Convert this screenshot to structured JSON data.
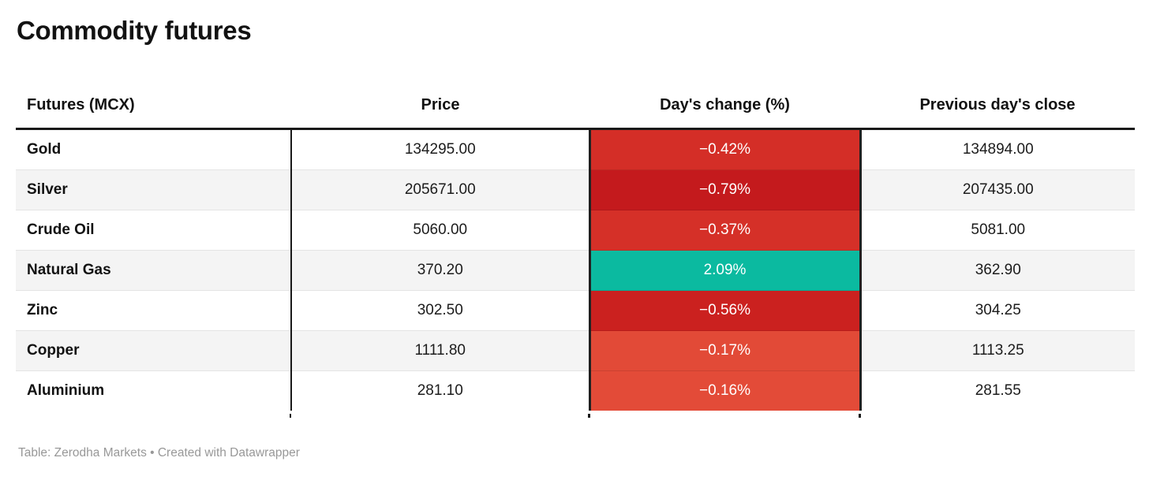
{
  "title": "Commodity futures",
  "table": {
    "columns": [
      {
        "label": "Futures (MCX)"
      },
      {
        "label": "Price"
      },
      {
        "label": "Day's change (%)"
      },
      {
        "label": "Previous day's close"
      }
    ],
    "rows": [
      {
        "name": "Gold",
        "price": "134295.00",
        "change": "−0.42%",
        "change_color": "#d42e27",
        "prev_close": "134894.00"
      },
      {
        "name": "Silver",
        "price": "205671.00",
        "change": "−0.79%",
        "change_color": "#c41a1d",
        "prev_close": "207435.00"
      },
      {
        "name": "Crude Oil",
        "price": "5060.00",
        "change": "−0.37%",
        "change_color": "#d53028",
        "prev_close": "5081.00"
      },
      {
        "name": "Natural Gas",
        "price": "370.20",
        "change": "2.09%",
        "change_color": "#0bbaa0",
        "prev_close": "362.90"
      },
      {
        "name": "Zinc",
        "price": "302.50",
        "change": "−0.56%",
        "change_color": "#cb211f",
        "prev_close": "304.25"
      },
      {
        "name": "Copper",
        "price": "1111.80",
        "change": "−0.17%",
        "change_color": "#e24a37",
        "prev_close": "1113.25"
      },
      {
        "name": "Aluminium",
        "price": "281.10",
        "change": "−0.16%",
        "change_color": "#e34b38",
        "prev_close": "281.55"
      }
    ]
  },
  "footer": {
    "text": "Table: Zerodha Markets • Created with Datawrapper"
  },
  "colors": {
    "negative_dark": "#c41a1d",
    "negative_mid": "#d42e27",
    "negative_light": "#e34b38",
    "positive": "#0bbaa0",
    "stripe": "#f4f4f4",
    "border_dark": "#191919",
    "footer_text": "#989898"
  },
  "chart_data": {
    "type": "table",
    "title": "Commodity futures",
    "columns": [
      "Futures (MCX)",
      "Price",
      "Day's change (%)",
      "Previous day's close"
    ],
    "rows": [
      [
        "Gold",
        134295.0,
        -0.42,
        134894.0
      ],
      [
        "Silver",
        205671.0,
        -0.79,
        207435.0
      ],
      [
        "Crude Oil",
        5060.0,
        -0.37,
        5081.0
      ],
      [
        "Natural Gas",
        370.2,
        2.09,
        362.9
      ],
      [
        "Zinc",
        302.5,
        -0.56,
        304.25
      ],
      [
        "Copper",
        1111.8,
        -0.17,
        1113.25
      ],
      [
        "Aluminium",
        281.1,
        -0.16,
        281.55
      ]
    ],
    "notes": "Day's change cells are heat-colored: red shades for negative values (darker = more negative), teal for positive.",
    "source": "Table: Zerodha Markets • Created with Datawrapper"
  }
}
